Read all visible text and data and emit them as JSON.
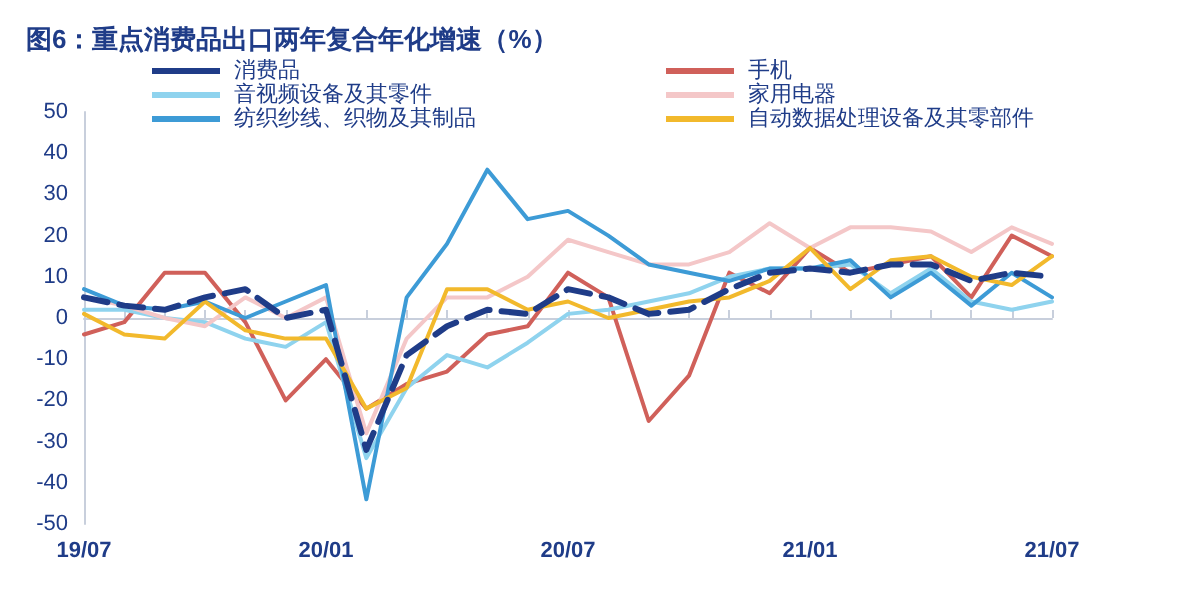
{
  "chart_data": {
    "type": "line",
    "title": "图6：重点消费品出口两年复合年化增速（%）",
    "categories": [
      "19/07",
      null,
      null,
      null,
      null,
      null,
      "20/01",
      null,
      null,
      null,
      null,
      null,
      "20/07",
      null,
      null,
      null,
      null,
      null,
      "21/01",
      null,
      null,
      null,
      null,
      null,
      "21/07"
    ],
    "series": [
      {
        "name": "消费品",
        "color": "#1f3c88",
        "line_style": "dashed",
        "values": [
          5,
          3,
          2,
          5,
          7,
          0,
          2,
          -32,
          -9,
          -2,
          2,
          1,
          7,
          5,
          1,
          2,
          7,
          11,
          12,
          11,
          13,
          13,
          9,
          11,
          10
        ]
      },
      {
        "name": "手机",
        "color": "#d0605a",
        "values": [
          -4,
          -1,
          11,
          11,
          -1,
          -20,
          -10,
          -22,
          -16,
          -13,
          -4,
          -2,
          11,
          5,
          -25,
          -14,
          11,
          6,
          17,
          11,
          13,
          15,
          5,
          20,
          15
        ]
      },
      {
        "name": "音视频设备及其零件",
        "color": "#8fd3ee",
        "values": [
          2,
          2,
          0,
          -1,
          -5,
          -7,
          -1,
          -34,
          -17,
          -9,
          -12,
          -6,
          1,
          2,
          4,
          6,
          10,
          12,
          12,
          13,
          6,
          12,
          4,
          2,
          4
        ]
      },
      {
        "name": "家用电器",
        "color": "#f4c7c8",
        "values": [
          5,
          3,
          0,
          -2,
          5,
          0,
          5,
          -28,
          -5,
          5,
          5,
          10,
          19,
          16,
          13,
          13,
          16,
          23,
          17,
          22,
          22,
          21,
          16,
          22,
          18
        ]
      },
      {
        "name": "纺织纱线、织物及其制品",
        "color": "#3d9bd6",
        "values": [
          7,
          3,
          2,
          4,
          0,
          4,
          8,
          -44,
          5,
          18,
          36,
          24,
          26,
          20,
          13,
          11,
          9,
          12,
          12,
          14,
          5,
          11,
          3,
          11,
          5
        ]
      },
      {
        "name": "自动数据处理设备及其零部件",
        "color": "#f2b92c",
        "values": [
          1,
          -4,
          -5,
          4,
          -3,
          -5,
          -5,
          -22,
          -17,
          7,
          7,
          2,
          4,
          0,
          2,
          4,
          5,
          9,
          17,
          7,
          14,
          15,
          10,
          8,
          15
        ]
      }
    ],
    "ylim": [
      -50,
      50
    ],
    "yticks": [
      -50,
      -40,
      -30,
      -20,
      -10,
      0,
      10,
      20,
      30,
      40,
      50
    ],
    "legend": "top",
    "marker": "none"
  }
}
